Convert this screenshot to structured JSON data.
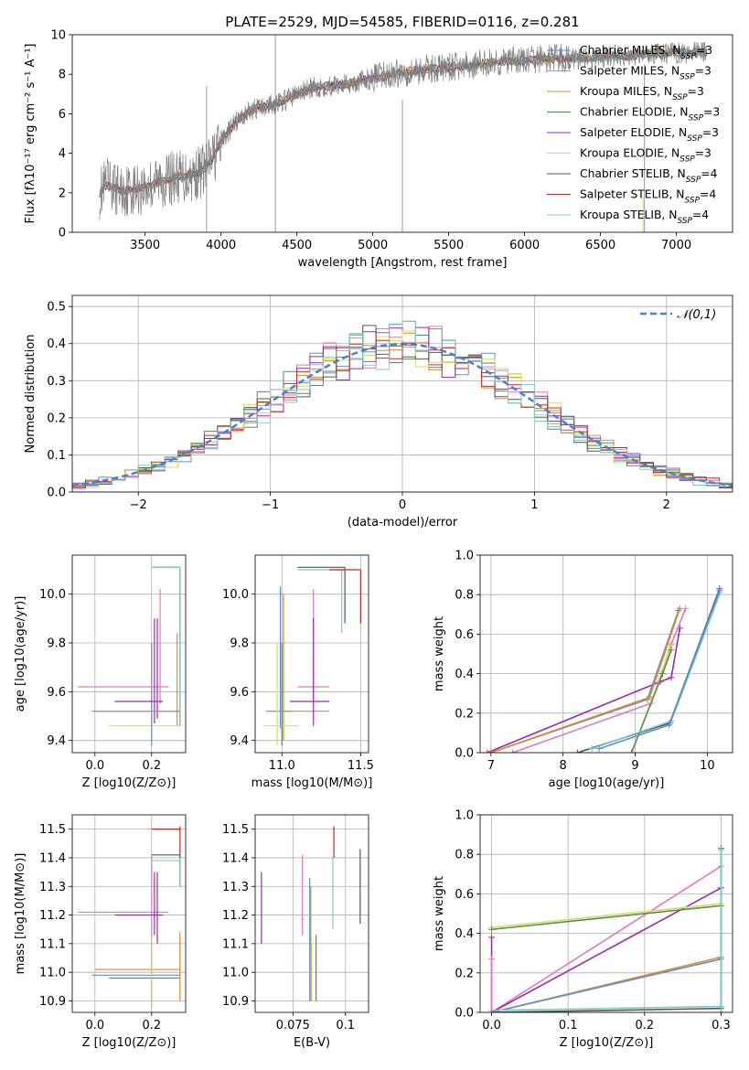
{
  "figure_title": "PLATE=2529, MJD=54585, FIBERID=0116, z=0.281",
  "colors": {
    "chabrier_miles": "#5b8fd6",
    "salpeter_miles": "#e377c2",
    "kroupa_miles": "#e6882c",
    "chabrier_elodie": "#5a8a5a",
    "salpeter_elodie": "#9c27b0",
    "kroupa_elodie": "#d4e157",
    "chabrier_stelib": "#555555",
    "salpeter_stelib": "#c62828",
    "kroupa_stelib": "#80cbc4",
    "observed": "#808080",
    "normal": "#4a7fd0"
  },
  "chart_data": [
    {
      "id": "spectrum",
      "type": "line",
      "xlabel": "wavelength [Angstrom, rest frame]",
      "ylabel": "Flux [fλ10⁻¹⁷ erg cm⁻² s⁻¹ A⁻¹]",
      "xlim": [
        3020,
        7370
      ],
      "ylim": [
        0,
        10
      ],
      "xticks": [
        3500,
        4000,
        4500,
        5000,
        5500,
        6000,
        6500,
        7000
      ],
      "yticks": [
        0,
        2,
        4,
        6,
        8,
        10
      ],
      "grid": false,
      "legend_position": "top-right",
      "continuum": {
        "x": [
          3200,
          3250,
          3300,
          3350,
          3400,
          3450,
          3500,
          3550,
          3600,
          3650,
          3700,
          3750,
          3800,
          3850,
          3900,
          3950,
          4000,
          4100,
          4200,
          4300,
          4400,
          4500,
          4600,
          4700,
          4800,
          4900,
          5000,
          5200,
          5400,
          5600,
          5800,
          6000,
          6200,
          6400,
          6600,
          6800,
          7000,
          7200
        ],
        "y": [
          2.0,
          2.4,
          2.2,
          2.1,
          2.2,
          2.2,
          2.3,
          2.4,
          2.6,
          2.7,
          2.8,
          2.8,
          2.9,
          3.0,
          3.3,
          3.8,
          4.6,
          5.6,
          6.2,
          6.4,
          6.6,
          7.0,
          7.3,
          7.4,
          7.5,
          7.6,
          7.8,
          8.1,
          8.3,
          8.4,
          8.6,
          8.7,
          8.8,
          8.8,
          8.9,
          9.0,
          9.1,
          9.1
        ]
      },
      "legend": [
        "Chabrier MILES, NSSP=3",
        "Salpeter MILES, NSSP=3",
        "Kroupa MILES, NSSP=3",
        "Chabrier ELODIE, NSSP=3",
        "Salpeter ELODIE, NSSP=3",
        "Kroupa ELODIE, NSSP=3",
        "Chabrier STELIB, NSSP=4",
        "Salpeter STELIB, NSSP=4",
        "Kroupa STELIB, NSSP=4"
      ]
    },
    {
      "id": "residuals",
      "type": "step",
      "xlabel": "(data-model)/error",
      "ylabel": "Normed distribution",
      "xlim": [
        -2.5,
        2.5
      ],
      "ylim": [
        0,
        0.53
      ],
      "xticks": [
        -2,
        -1,
        0,
        1,
        2
      ],
      "yticks": [
        0.0,
        0.1,
        0.2,
        0.3,
        0.4,
        0.5
      ],
      "grid": true,
      "legend_position": "top-right",
      "legend": [
        "𝒩(0,1)"
      ],
      "bin_width": 0.1
    },
    {
      "id": "age_vs_Z",
      "type": "errorbar",
      "xlabel": "Z [log10(Z/Z⊙)]",
      "ylabel": "age  [log10(age/yr)]",
      "xlim": [
        -0.08,
        0.32
      ],
      "ylim": [
        9.35,
        10.16
      ],
      "xticks": [
        0.0,
        0.2
      ],
      "yticks": [
        9.4,
        9.6,
        9.8,
        10.0
      ],
      "grid": true
    },
    {
      "id": "age_vs_mass",
      "type": "errorbar",
      "xlabel": "mass [log10(M/M⊙)]",
      "ylabel": "",
      "xlim": [
        10.83,
        11.55
      ],
      "ylim": [
        9.35,
        10.16
      ],
      "xticks": [
        11.0,
        11.5
      ],
      "yticks": [
        9.4,
        9.6,
        9.8,
        10.0
      ],
      "grid": true
    },
    {
      "id": "weight_vs_age",
      "type": "line",
      "xlabel": "age  [log10(age/yr)]",
      "ylabel": "mass weight",
      "xlim": [
        6.85,
        10.35
      ],
      "ylim": [
        0,
        1.0
      ],
      "xticks": [
        7,
        8,
        9,
        10
      ],
      "yticks": [
        0.0,
        0.2,
        0.4,
        0.6,
        0.8,
        1.0
      ],
      "grid": true
    },
    {
      "id": "mass_vs_Z",
      "type": "errorbar",
      "xlabel": "Z [log10(Z/Z⊙)]",
      "ylabel": "mass [log10(M/M⊙)]",
      "xlim": [
        -0.08,
        0.32
      ],
      "ylim": [
        10.86,
        11.55
      ],
      "xticks": [
        0.0,
        0.2
      ],
      "yticks": [
        10.9,
        11.0,
        11.1,
        11.2,
        11.3,
        11.4,
        11.5
      ],
      "grid": true
    },
    {
      "id": "mass_vs_EBV",
      "type": "errorbar",
      "xlabel": "E(B-V)",
      "ylabel": "",
      "xlim": [
        0.057,
        0.111
      ],
      "ylim": [
        10.86,
        11.55
      ],
      "xticks": [
        0.075,
        0.1
      ],
      "yticks": [
        10.9,
        11.0,
        11.1,
        11.2,
        11.3,
        11.4,
        11.5
      ],
      "grid": true
    },
    {
      "id": "weight_vs_Z",
      "type": "line",
      "xlabel": "Z [log10(Z/Z⊙)]",
      "ylabel": "mass weight",
      "xlim": [
        -0.015,
        0.315
      ],
      "ylim": [
        0,
        1.0
      ],
      "xticks": [
        0.0,
        0.1,
        0.2,
        0.3
      ],
      "yticks": [
        0.0,
        0.2,
        0.4,
        0.6,
        0.8,
        1.0
      ],
      "grid": true
    }
  ]
}
